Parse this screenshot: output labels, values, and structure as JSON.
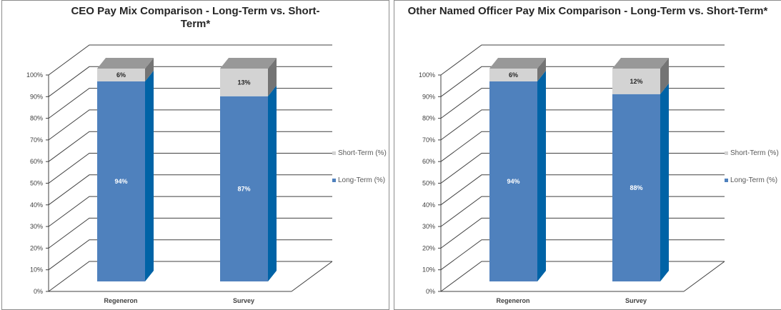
{
  "chart_data": [
    {
      "type": "bar3d_stacked",
      "title": "CEO Pay Mix Comparison - Long-Term vs. Short-Term*",
      "categories": [
        "Regeneron",
        "Survey"
      ],
      "series": [
        {
          "name": "Long-Term (%)",
          "color": "#4f81bd",
          "values": [
            94,
            87
          ],
          "value_labels": [
            "94%",
            "87%"
          ]
        },
        {
          "name": "Short-Term (%)",
          "color": "#d3d3d3",
          "values": [
            6,
            13
          ],
          "value_labels": [
            "6%",
            "13%"
          ]
        }
      ],
      "ylim": [
        0,
        100
      ],
      "yticks": [
        {
          "value": 0,
          "label": "0%"
        },
        {
          "value": 10,
          "label": "10%"
        },
        {
          "value": 20,
          "label": "20%"
        },
        {
          "value": 30,
          "label": "30%"
        },
        {
          "value": 40,
          "label": "40%"
        },
        {
          "value": 50,
          "label": "50%"
        },
        {
          "value": 60,
          "label": "60%"
        },
        {
          "value": 70,
          "label": "70%"
        },
        {
          "value": 80,
          "label": "80%"
        },
        {
          "value": 90,
          "label": "90%"
        },
        {
          "value": 100,
          "label": "100%"
        }
      ],
      "grid": true,
      "legend": "right"
    },
    {
      "type": "bar3d_stacked",
      "title": "Other Named Officer Pay Mix Comparison - Long-Term vs. Short-Term*",
      "categories": [
        "Regeneron",
        "Survey"
      ],
      "series": [
        {
          "name": "Long-Term (%)",
          "color": "#4f81bd",
          "values": [
            94,
            88
          ],
          "value_labels": [
            "94%",
            "88%"
          ]
        },
        {
          "name": "Short-Term (%)",
          "color": "#d3d3d3",
          "values": [
            6,
            12
          ],
          "value_labels": [
            "6%",
            "12%"
          ]
        }
      ],
      "ylim": [
        0,
        100
      ],
      "yticks": [
        {
          "value": 0,
          "label": "0%"
        },
        {
          "value": 10,
          "label": "10%"
        },
        {
          "value": 20,
          "label": "20%"
        },
        {
          "value": 30,
          "label": "30%"
        },
        {
          "value": 40,
          "label": "40%"
        },
        {
          "value": 50,
          "label": "50%"
        },
        {
          "value": 60,
          "label": "60%"
        },
        {
          "value": 70,
          "label": "70%"
        },
        {
          "value": 80,
          "label": "80%"
        },
        {
          "value": 90,
          "label": "90%"
        },
        {
          "value": 100,
          "label": "100%"
        }
      ],
      "grid": true,
      "legend": "right"
    }
  ]
}
